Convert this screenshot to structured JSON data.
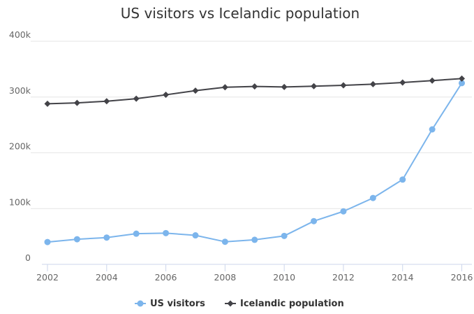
{
  "chart_data": {
    "type": "line",
    "title": "US visitors vs Icelandic population",
    "xlabel": "",
    "ylabel": "",
    "x": [
      2002,
      2003,
      2004,
      2005,
      2006,
      2007,
      2008,
      2009,
      2010,
      2011,
      2012,
      2013,
      2014,
      2015,
      2016
    ],
    "x_ticks": [
      2002,
      2004,
      2006,
      2008,
      2010,
      2012,
      2014,
      2016
    ],
    "x_tick_labels": [
      "2002",
      "2004",
      "2006",
      "2008",
      "2010",
      "2012",
      "2014",
      "2016"
    ],
    "xlim": [
      2002,
      2016.2
    ],
    "ylim": [
      0,
      400000
    ],
    "y_ticks": [
      0,
      100000,
      200000,
      300000,
      400000
    ],
    "y_tick_labels": [
      "0",
      "100k",
      "200k",
      "300k",
      "400k"
    ],
    "grid": "horizontal",
    "legend_position": "bottom",
    "series": [
      {
        "name": "US visitors",
        "color": "#7cb5ec",
        "marker": "circle",
        "values": [
          40000,
          45000,
          48000,
          55000,
          56000,
          52000,
          40500,
          44000,
          51000,
          77500,
          95000,
          119000,
          152000,
          242000,
          325000
        ]
      },
      {
        "name": "Icelandic population",
        "color": "#434348",
        "marker": "diamond",
        "values": [
          288000,
          289500,
          292500,
          297000,
          304000,
          311500,
          317500,
          319000,
          318000,
          319500,
          321000,
          323000,
          326000,
          329500,
          333000
        ]
      }
    ]
  }
}
